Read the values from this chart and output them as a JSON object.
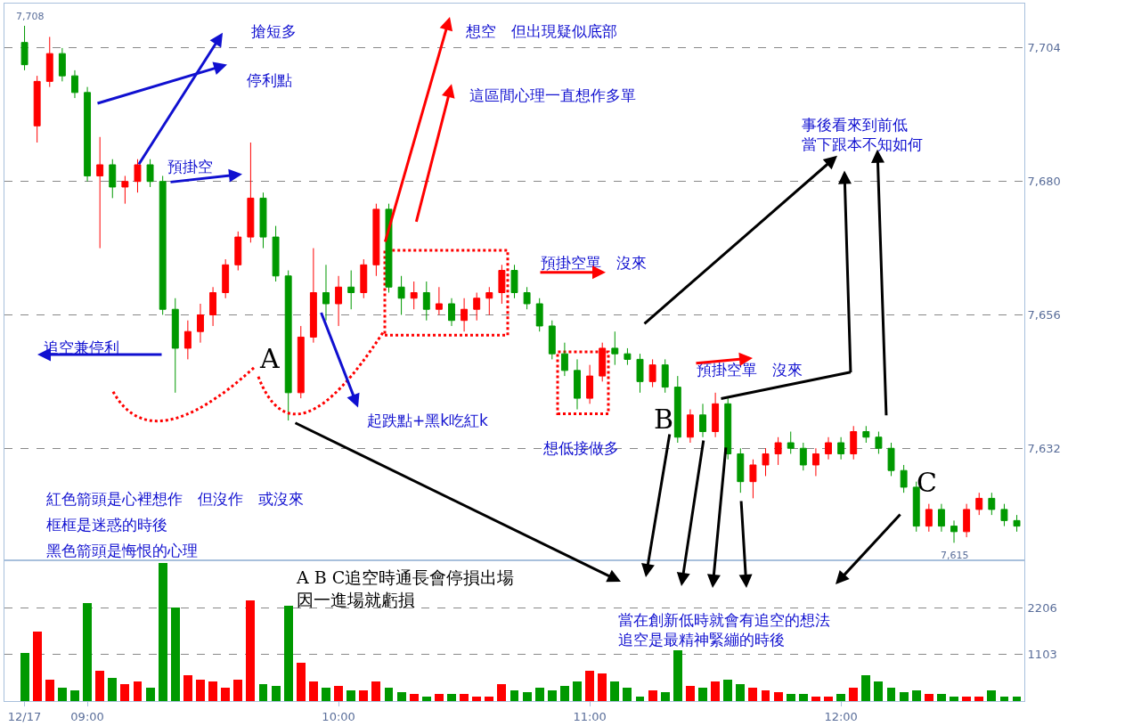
{
  "chart_data": [
    {
      "type": "candlestick",
      "x": [
        8.75,
        8.8,
        8.85,
        8.9,
        8.95,
        9.0,
        9.05,
        9.1,
        9.15,
        9.2,
        9.25,
        9.3,
        9.35,
        9.4,
        9.45,
        9.5,
        9.55,
        9.6,
        9.65,
        9.7,
        9.75,
        9.8,
        9.85,
        9.9,
        9.95,
        10.0,
        10.05,
        10.1,
        10.15,
        10.2,
        10.25,
        10.3,
        10.35,
        10.4,
        10.45,
        10.5,
        10.55,
        10.6,
        10.65,
        10.7,
        10.75,
        10.8,
        10.85,
        10.9,
        10.95,
        11.0,
        11.05,
        11.1,
        11.15,
        11.2,
        11.25,
        11.3,
        11.35,
        11.4,
        11.45,
        11.5,
        11.55,
        11.6,
        11.65,
        11.7,
        11.75,
        11.8,
        11.85,
        11.9,
        11.95,
        12.0,
        12.05,
        12.1,
        12.15,
        12.2,
        12.25,
        12.3,
        12.35,
        12.4,
        12.45,
        12.5,
        12.55,
        12.6,
        12.65,
        12.7
      ],
      "ohlc": [
        [
          7705,
          7708,
          7700,
          7701
        ],
        [
          7690,
          7699,
          7687,
          7698
        ],
        [
          7698,
          7706,
          7697,
          7703
        ],
        [
          7703,
          7704,
          7698,
          7699
        ],
        [
          7699,
          7700,
          7695,
          7696
        ],
        [
          7696,
          7697,
          7680,
          7681
        ],
        [
          7681,
          7688,
          7668,
          7683
        ],
        [
          7683,
          7684,
          7677,
          7679
        ],
        [
          7679,
          7681,
          7676,
          7680
        ],
        [
          7680,
          7684,
          7678,
          7683
        ],
        [
          7683,
          7684,
          7679,
          7680
        ],
        [
          7680,
          7681,
          7656,
          7657
        ],
        [
          7657,
          7659,
          7642,
          7650
        ],
        [
          7650,
          7655,
          7648,
          7653
        ],
        [
          7653,
          7658,
          7651,
          7656
        ],
        [
          7656,
          7661,
          7654,
          7660
        ],
        [
          7660,
          7666,
          7659,
          7665
        ],
        [
          7665,
          7671,
          7664,
          7670
        ],
        [
          7670,
          7687,
          7669,
          7677
        ],
        [
          7677,
          7678,
          7668,
          7670
        ],
        [
          7670,
          7672,
          7662,
          7663
        ],
        [
          7663,
          7664,
          7637,
          7642
        ],
        [
          7642,
          7654,
          7641,
          7652
        ],
        [
          7652,
          7668,
          7651,
          7660
        ],
        [
          7660,
          7665,
          7655,
          7658
        ],
        [
          7658,
          7663,
          7654,
          7661
        ],
        [
          7661,
          7664,
          7657,
          7660
        ],
        [
          7660,
          7666,
          7659,
          7665
        ],
        [
          7665,
          7676,
          7663,
          7675
        ],
        [
          7675,
          7676,
          7660,
          7661
        ],
        [
          7661,
          7663,
          7656,
          7659
        ],
        [
          7659,
          7662,
          7657,
          7660
        ],
        [
          7660,
          7662,
          7655,
          7657
        ],
        [
          7657,
          7661,
          7656,
          7658
        ],
        [
          7658,
          7659,
          7654,
          7655
        ],
        [
          7655,
          7659,
          7653,
          7657
        ],
        [
          7657,
          7660,
          7655,
          7659
        ],
        [
          7659,
          7661,
          7656,
          7660
        ],
        [
          7660,
          7665,
          7658,
          7664
        ],
        [
          7664,
          7665,
          7659,
          7660
        ],
        [
          7660,
          7661,
          7657,
          7658
        ],
        [
          7658,
          7659,
          7653,
          7654
        ],
        [
          7654,
          7655,
          7648,
          7649
        ],
        [
          7649,
          7651,
          7645,
          7646
        ],
        [
          7646,
          7648,
          7639,
          7641
        ],
        [
          7641,
          7647,
          7640,
          7645
        ],
        [
          7645,
          7651,
          7644,
          7650
        ],
        [
          7650,
          7653,
          7647,
          7649
        ],
        [
          7649,
          7650,
          7647,
          7648
        ],
        [
          7648,
          7649,
          7642,
          7644
        ],
        [
          7644,
          7648,
          7643,
          7647
        ],
        [
          7647,
          7648,
          7642,
          7643
        ],
        [
          7643,
          7645,
          7633,
          7634
        ],
        [
          7634,
          7639,
          7633,
          7638
        ],
        [
          7638,
          7640,
          7634,
          7635
        ],
        [
          7635,
          7642,
          7634,
          7640
        ],
        [
          7640,
          7641,
          7630,
          7631
        ],
        [
          7631,
          7632,
          7624,
          7626
        ],
        [
          7626,
          7630,
          7623,
          7629
        ],
        [
          7629,
          7632,
          7627,
          7631
        ],
        [
          7631,
          7634,
          7629,
          7633
        ],
        [
          7633,
          7635,
          7631,
          7632
        ],
        [
          7632,
          7633,
          7628,
          7629
        ],
        [
          7629,
          7632,
          7627,
          7631
        ],
        [
          7631,
          7634,
          7630,
          7633
        ],
        [
          7633,
          7634,
          7630,
          7631
        ],
        [
          7631,
          7636,
          7630,
          7635
        ],
        [
          7635,
          7636,
          7633,
          7634
        ],
        [
          7634,
          7635,
          7631,
          7632
        ],
        [
          7632,
          7633,
          7627,
          7628
        ],
        [
          7628,
          7629,
          7624,
          7625
        ],
        [
          7625,
          7626,
          7617,
          7618
        ],
        [
          7618,
          7622,
          7617,
          7621
        ],
        [
          7621,
          7622,
          7617,
          7618
        ],
        [
          7618,
          7619,
          7615,
          7617
        ],
        [
          7617,
          7622,
          7616,
          7621
        ],
        [
          7621,
          7624,
          7620,
          7623
        ],
        [
          7623,
          7624,
          7620,
          7621
        ],
        [
          7621,
          7622,
          7618,
          7619
        ],
        [
          7619,
          7620,
          7617,
          7618
        ]
      ],
      "colors": [
        "#009900",
        "#ff0000",
        "#ff0000",
        "#009900",
        "#009900",
        "#009900",
        "#ff0000",
        "#009900",
        "#ff0000",
        "#ff0000",
        "#009900",
        "#009900",
        "#009900",
        "#ff0000",
        "#ff0000",
        "#ff0000",
        "#ff0000",
        "#ff0000",
        "#ff0000",
        "#009900",
        "#009900",
        "#009900",
        "#ff0000",
        "#ff0000",
        "#009900",
        "#ff0000",
        "#009900",
        "#ff0000",
        "#ff0000",
        "#009900",
        "#009900",
        "#ff0000",
        "#009900",
        "#ff0000",
        "#009900",
        "#ff0000",
        "#ff0000",
        "#ff0000",
        "#ff0000",
        "#009900",
        "#009900",
        "#009900",
        "#009900",
        "#009900",
        "#009900",
        "#ff0000",
        "#ff0000",
        "#009900",
        "#009900",
        "#009900",
        "#ff0000",
        "#009900",
        "#009900",
        "#ff0000",
        "#009900",
        "#ff0000",
        "#009900",
        "#009900",
        "#ff0000",
        "#ff0000",
        "#ff0000",
        "#009900",
        "#009900",
        "#ff0000",
        "#ff0000",
        "#009900",
        "#ff0000",
        "#009900",
        "#009900",
        "#009900",
        "#009900",
        "#009900",
        "#ff0000",
        "#009900",
        "#009900",
        "#ff0000",
        "#ff0000",
        "#009900",
        "#009900",
        "#009900"
      ],
      "xlim": [
        8.67,
        12.73
      ],
      "ylim": [
        7612,
        7712
      ],
      "yticks": [
        {
          "value": 7632,
          "label": "7,632"
        },
        {
          "value": 7656,
          "label": "7,656"
        },
        {
          "value": 7680,
          "label": "7,680"
        },
        {
          "value": 7704,
          "label": "7,704"
        }
      ],
      "tick_labels": "y",
      "grid": "y",
      "annotations": [
        "搶短多",
        "停利點",
        "預掛空",
        "想空　但出現疑似底部",
        "這區間心理一直想作多單",
        "事後看來到前低當下跟本不知如何",
        "預掛空單　沒來",
        "預掛空單　沒來",
        "追空兼停利",
        "A",
        "起跌點+黑k吃紅k",
        "想低接做多",
        "B",
        "C",
        "紅色箭頭是心裡想作　但沒作　或沒來",
        "框框是迷惑的時後",
        "黑色箭頭是悔恨的心理",
        "7,708",
        "7,615"
      ]
    },
    {
      "type": "bar",
      "x": [
        8.75,
        8.8,
        8.85,
        8.9,
        8.95,
        9.0,
        9.05,
        9.1,
        9.15,
        9.2,
        9.25,
        9.3,
        9.35,
        9.4,
        9.45,
        9.5,
        9.55,
        9.6,
        9.65,
        9.7,
        9.75,
        9.8,
        9.85,
        9.9,
        9.95,
        10.0,
        10.05,
        10.1,
        10.15,
        10.2,
        10.25,
        10.3,
        10.35,
        10.4,
        10.45,
        10.5,
        10.55,
        10.6,
        10.65,
        10.7,
        10.75,
        10.8,
        10.85,
        10.9,
        10.95,
        11.0,
        11.05,
        11.1,
        11.15,
        11.2,
        11.25,
        11.3,
        11.35,
        11.4,
        11.45,
        11.5,
        11.55,
        11.6,
        11.65,
        11.7,
        11.75,
        11.8,
        11.85,
        11.9,
        11.95,
        12.0,
        12.05,
        12.1,
        12.15,
        12.2,
        12.25,
        12.3,
        12.35,
        12.4,
        12.45,
        12.5,
        12.55,
        12.6,
        12.65,
        12.7
      ],
      "values": [
        1120,
        1640,
        500,
        300,
        250,
        2310,
        700,
        550,
        400,
        450,
        300,
        3250,
        2200,
        600,
        500,
        450,
        300,
        500,
        2370,
        400,
        350,
        2250,
        900,
        450,
        300,
        350,
        250,
        250,
        450,
        300,
        200,
        150,
        100,
        150,
        150,
        150,
        100,
        100,
        400,
        250,
        200,
        300,
        250,
        350,
        450,
        700,
        650,
        450,
        300,
        100,
        250,
        200,
        1190,
        350,
        300,
        450,
        500,
        400,
        300,
        250,
        200,
        150,
        150,
        100,
        100,
        150,
        300,
        600,
        450,
        300,
        200,
        250,
        150,
        150,
        100,
        100,
        100,
        250,
        100,
        100
      ],
      "colors": [
        "#009900",
        "#ff0000",
        "#ff0000",
        "#009900",
        "#009900",
        "#009900",
        "#ff0000",
        "#009900",
        "#ff0000",
        "#ff0000",
        "#009900",
        "#009900",
        "#009900",
        "#ff0000",
        "#ff0000",
        "#ff0000",
        "#ff0000",
        "#ff0000",
        "#ff0000",
        "#009900",
        "#009900",
        "#009900",
        "#ff0000",
        "#ff0000",
        "#009900",
        "#ff0000",
        "#009900",
        "#ff0000",
        "#ff0000",
        "#009900",
        "#009900",
        "#ff0000",
        "#009900",
        "#ff0000",
        "#009900",
        "#ff0000",
        "#ff0000",
        "#ff0000",
        "#ff0000",
        "#009900",
        "#009900",
        "#009900",
        "#009900",
        "#009900",
        "#009900",
        "#ff0000",
        "#ff0000",
        "#009900",
        "#009900",
        "#009900",
        "#ff0000",
        "#009900",
        "#009900",
        "#ff0000",
        "#009900",
        "#ff0000",
        "#009900",
        "#009900",
        "#ff0000",
        "#ff0000",
        "#ff0000",
        "#009900",
        "#009900",
        "#ff0000",
        "#ff0000",
        "#009900",
        "#ff0000",
        "#009900",
        "#009900",
        "#009900",
        "#009900",
        "#009900",
        "#ff0000",
        "#009900",
        "#009900",
        "#ff0000",
        "#ff0000",
        "#009900",
        "#009900",
        "#009900"
      ],
      "xlim": [
        8.67,
        12.73
      ],
      "xticks": [
        {
          "value": 8.75,
          "label": "12/17"
        },
        {
          "value": 9,
          "label": "09:00"
        },
        {
          "value": 10,
          "label": "10:00"
        },
        {
          "value": 11,
          "label": "11:00"
        },
        {
          "value": 12,
          "label": "12:00"
        }
      ],
      "ylim": [
        0,
        3300
      ],
      "yticks": [
        1103,
        2206
      ],
      "grid": "y",
      "annotations": [
        "A B C追空時通長會停損出場因一進場就虧損",
        "當在創新低時就會有追空的想法追空是最精神緊繃的時後"
      ]
    }
  ]
}
